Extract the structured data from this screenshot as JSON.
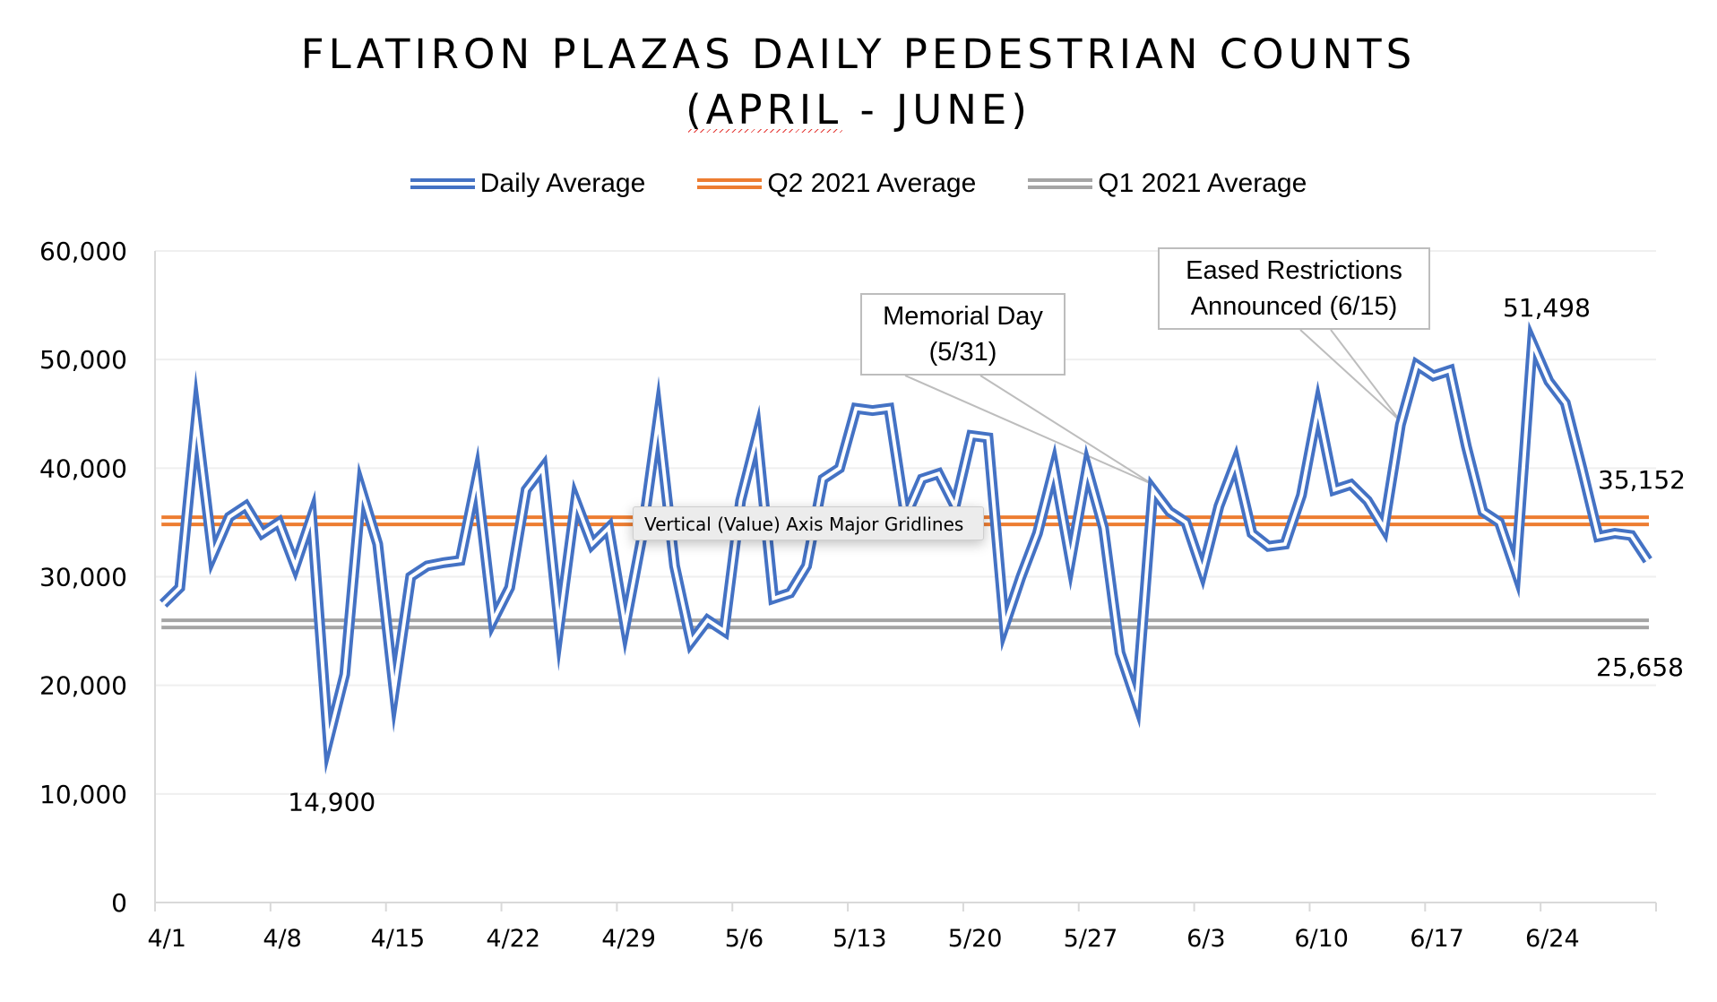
{
  "chart_data": {
    "type": "line",
    "title": "FLATIRON PLAZAS DAILY PEDESTRIAN COUNTS",
    "subtitle": "(APRIL - JUNE)",
    "xlabel": "",
    "ylabel": "",
    "ylim": [
      0,
      60000
    ],
    "yticks": [
      0,
      10000,
      20000,
      30000,
      40000,
      50000,
      60000
    ],
    "ytick_labels": [
      "0",
      "10,000",
      "20,000",
      "30,000",
      "40,000",
      "50,000",
      "60,000"
    ],
    "xtick_labels": [
      "4/1",
      "4/8",
      "4/15",
      "4/22",
      "4/29",
      "5/6",
      "5/13",
      "5/20",
      "5/27",
      "6/3",
      "6/10",
      "6/17",
      "6/24"
    ],
    "grid": "horizontal major gridlines",
    "legend_position": "top",
    "x": [
      "4/1",
      "4/2",
      "4/3",
      "4/4",
      "4/5",
      "4/6",
      "4/7",
      "4/8",
      "4/9",
      "4/10",
      "4/11",
      "4/12",
      "4/13",
      "4/14",
      "4/15",
      "4/16",
      "4/17",
      "4/18",
      "4/19",
      "4/20",
      "4/21",
      "4/22",
      "4/23",
      "4/24",
      "4/25",
      "4/26",
      "4/27",
      "4/28",
      "4/29",
      "4/30",
      "5/1",
      "5/2",
      "5/3",
      "5/4",
      "5/5",
      "5/6",
      "5/7",
      "5/8",
      "5/9",
      "5/10",
      "5/11",
      "5/12",
      "5/13",
      "5/14",
      "5/15",
      "5/16",
      "5/17",
      "5/18",
      "5/19",
      "5/20",
      "5/21",
      "5/22",
      "5/23",
      "5/24",
      "5/25",
      "5/26",
      "5/27",
      "5/28",
      "5/29",
      "5/30",
      "5/31",
      "6/1",
      "6/2",
      "6/3",
      "6/4",
      "6/5",
      "6/6",
      "6/7",
      "6/8",
      "6/9",
      "6/10",
      "6/11",
      "6/12",
      "6/13",
      "6/14",
      "6/15",
      "6/16",
      "6/17",
      "6/18",
      "6/19",
      "6/20",
      "6/21",
      "6/22",
      "6/23",
      "6/24",
      "6/25",
      "6/26",
      "6/27",
      "6/28",
      "6/29",
      "6/30"
    ],
    "series": [
      {
        "name": "Daily Average",
        "color": "#4472c4",
        "style": "double-line",
        "values": [
          27500,
          29000,
          44500,
          32000,
          35500,
          36500,
          34000,
          35000,
          31000,
          35500,
          14900,
          21000,
          38000,
          33000,
          19500,
          30000,
          31000,
          31300,
          31500,
          39000,
          26000,
          29000,
          38000,
          40000,
          25500,
          37000,
          33000,
          34500,
          25500,
          33500,
          44500,
          31000,
          24000,
          26000,
          25000,
          37000,
          43000,
          28000,
          28500,
          31000,
          39000,
          40000,
          45500,
          45300,
          45500,
          35500,
          39000,
          39500,
          36500,
          43000,
          42800,
          25500,
          30000,
          34000,
          40000,
          31500,
          40000,
          34500,
          23000,
          18500,
          38000,
          36000,
          35000,
          30500,
          36500,
          40500,
          34000,
          32800,
          33000,
          37500,
          45500,
          38000,
          38500,
          37000,
          34500,
          44000,
          49500,
          48500,
          49000,
          42000,
          36000,
          35000,
          30500,
          51498,
          48000,
          46000,
          40000,
          33700,
          34000,
          33800,
          31500
        ]
      },
      {
        "name": "Q2 2021 Average",
        "color": "#ed7d31",
        "style": "double-line",
        "value": 35152
      },
      {
        "name": "Q1 2021 Average",
        "color": "#a5a5a5",
        "style": "double-line",
        "value": 25658
      }
    ],
    "data_labels": [
      {
        "text": "14,900",
        "date": "4/11",
        "value": 14900
      },
      {
        "text": "51,498",
        "date": "6/23",
        "value": 51498
      },
      {
        "text": "35,152",
        "series": "Q2 2021 Average",
        "value": 35152
      },
      {
        "text": "25,658",
        "series": "Q1 2021 Average",
        "value": 25658
      }
    ],
    "annotations": [
      {
        "lines": [
          "Memorial Day",
          "(5/31)"
        ],
        "date": "5/31"
      },
      {
        "lines": [
          "Eased Restrictions",
          "Announced (6/15)"
        ],
        "date": "6/15"
      }
    ]
  },
  "tooltip": {
    "text": "Vertical (Value) Axis Major Gridlines"
  },
  "colors": {
    "gridline": "#efefef",
    "axis": "#d9d9d9",
    "callout_border": "#bdbdbd",
    "spellcheck": "#e53935"
  }
}
